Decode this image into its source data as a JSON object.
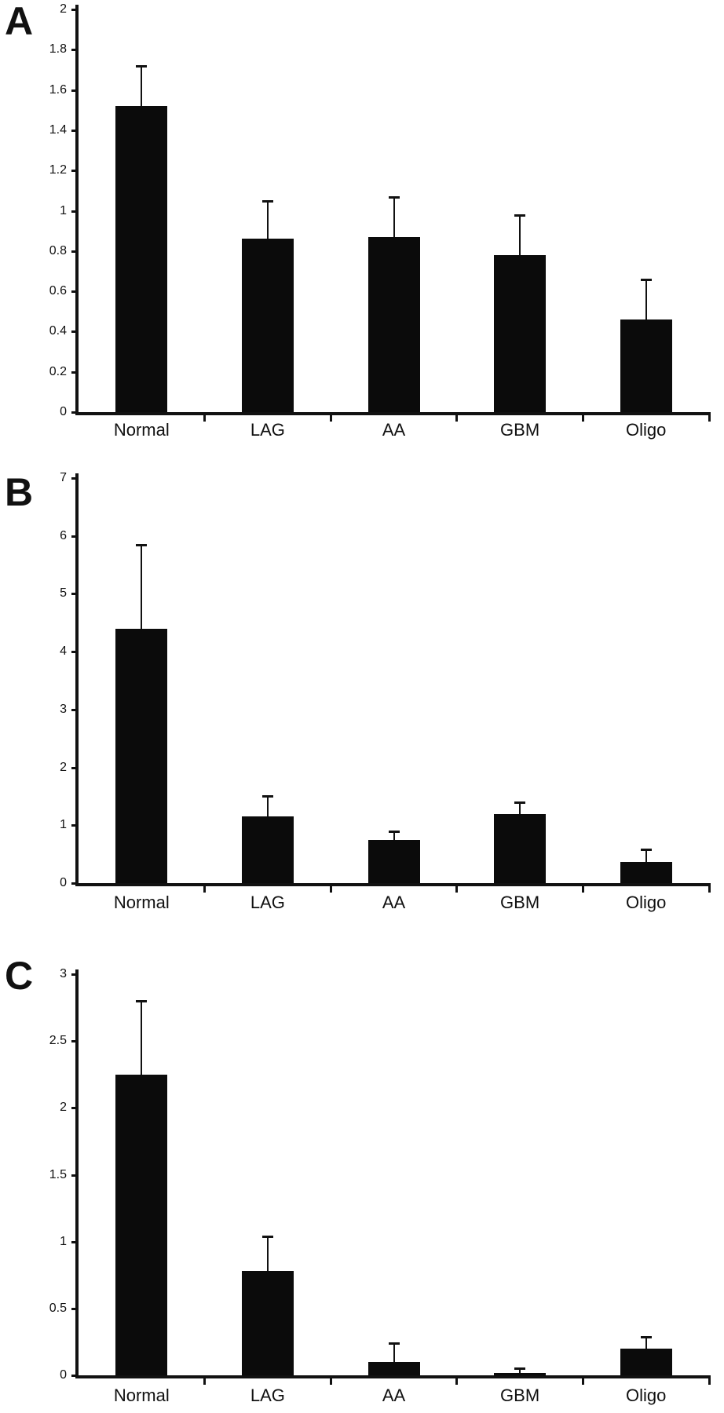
{
  "figure": {
    "background_color": "#ffffff",
    "bar_color": "#0b0b0b",
    "axis_color": "#111111",
    "text_color": "#111111"
  },
  "chart_data": [
    {
      "type": "bar",
      "panel_label": "A",
      "categories": [
        "Normal",
        "LAG",
        "AA",
        "GBM",
        "Oligo"
      ],
      "values": [
        1.52,
        0.86,
        0.87,
        0.78,
        0.46
      ],
      "error_upper": [
        0.2,
        0.19,
        0.2,
        0.2,
        0.2
      ],
      "title": "",
      "xlabel": "",
      "ylabel": "",
      "ylim": [
        0,
        2
      ],
      "yticks": [
        "0",
        "0.2",
        "0.4",
        "0.6",
        "0.8",
        "1",
        "1.2",
        "1.4",
        "1.6",
        "1.8",
        "2"
      ],
      "grid": false,
      "legend": false,
      "bar_style": "solid black, upward error bars with caps"
    },
    {
      "type": "bar",
      "panel_label": "B",
      "categories": [
        "Normal",
        "LAG",
        "AA",
        "GBM",
        "Oligo"
      ],
      "values": [
        4.4,
        1.15,
        0.75,
        1.2,
        0.37
      ],
      "error_upper": [
        1.45,
        0.35,
        0.15,
        0.2,
        0.21
      ],
      "title": "",
      "xlabel": "",
      "ylabel": "",
      "ylim": [
        0,
        7
      ],
      "yticks": [
        "0",
        "1",
        "2",
        "3",
        "4",
        "5",
        "6",
        "7"
      ],
      "grid": false,
      "legend": false,
      "bar_style": "solid black, upward error bars with caps"
    },
    {
      "type": "bar",
      "panel_label": "C",
      "categories": [
        "Normal",
        "LAG",
        "AA",
        "GBM",
        "Oligo"
      ],
      "values": [
        2.25,
        0.78,
        0.1,
        0.02,
        0.2
      ],
      "error_upper": [
        0.55,
        0.26,
        0.14,
        0.03,
        0.09
      ],
      "title": "",
      "xlabel": "",
      "ylabel": "",
      "ylim": [
        0,
        3
      ],
      "yticks": [
        "0",
        "0.5",
        "1",
        "1.5",
        "2",
        "2.5",
        "3"
      ],
      "grid": false,
      "legend": false,
      "bar_style": "solid black, upward error bars with caps"
    }
  ]
}
